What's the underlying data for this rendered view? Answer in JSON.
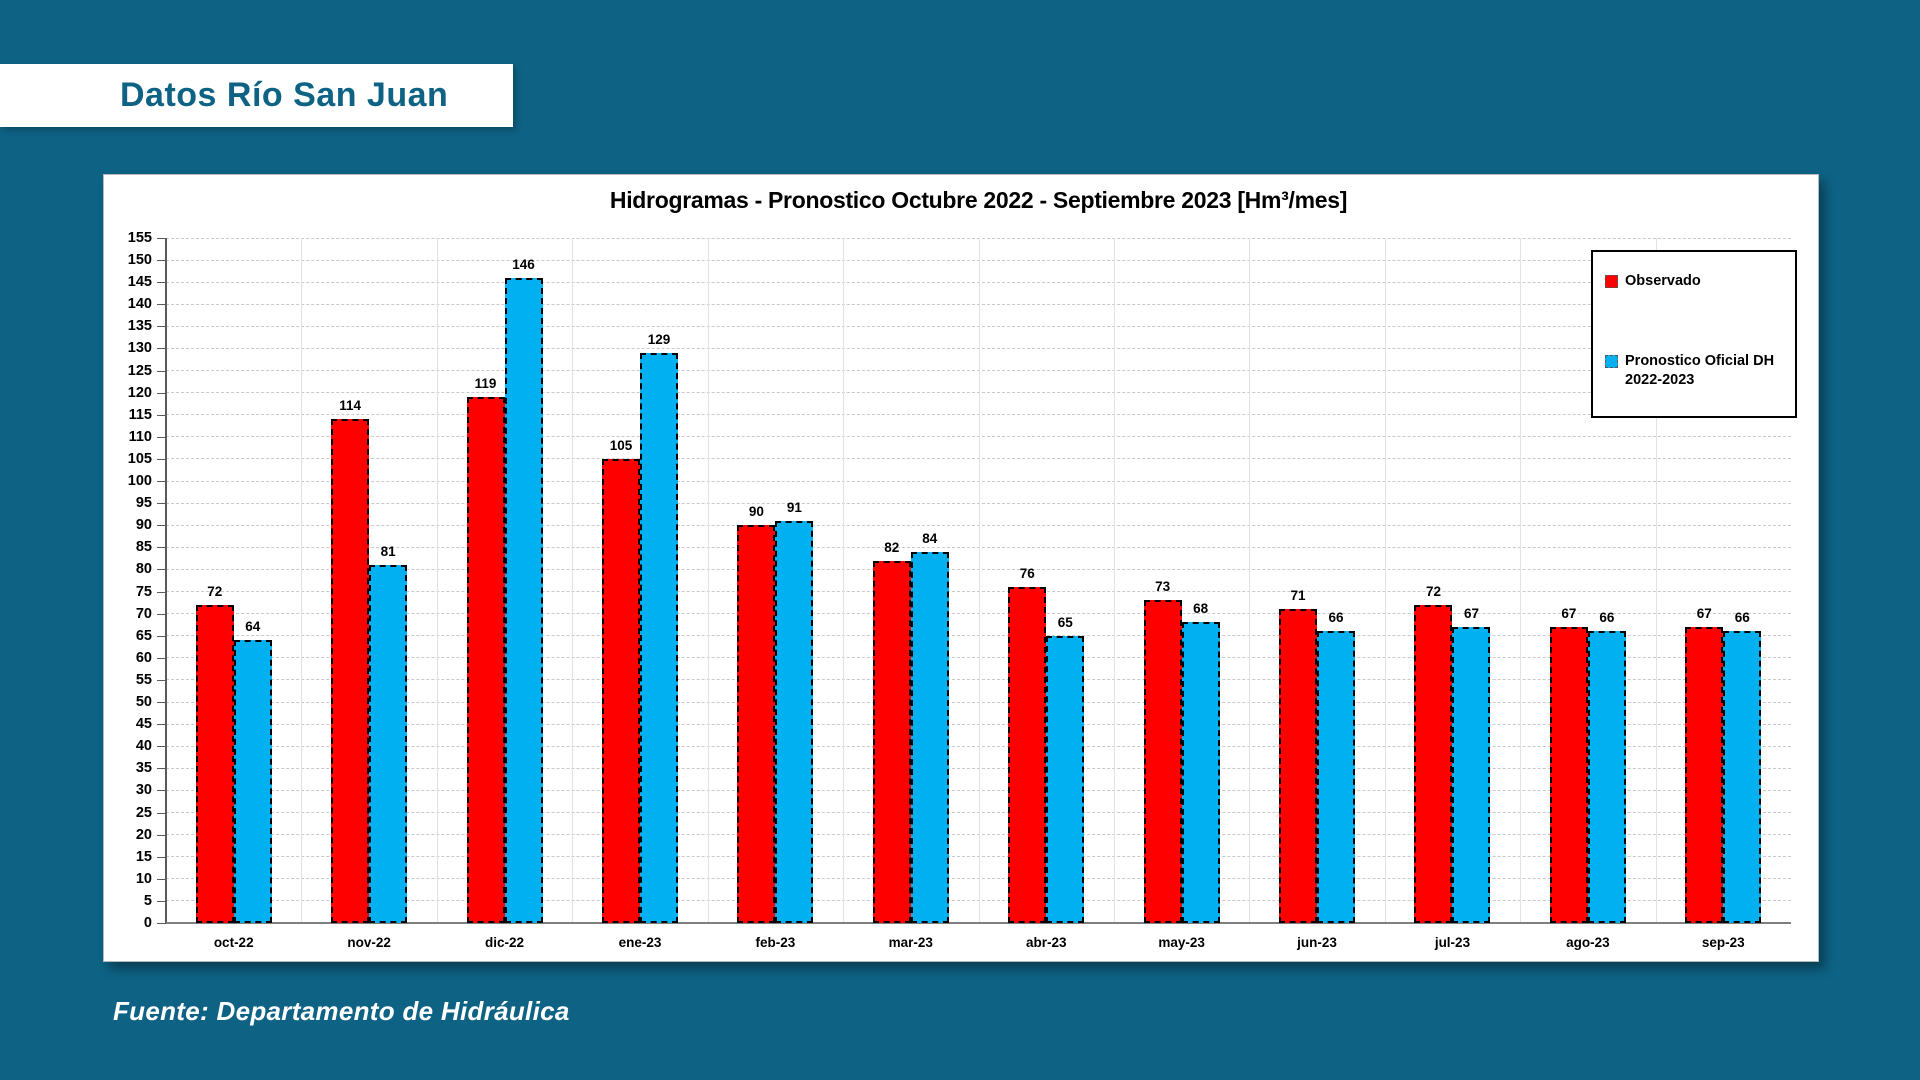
{
  "page": {
    "background_color": "#0e6284",
    "header_title": "Datos Río San Juan",
    "footer_source": "Fuente: Departamento de Hidráulica"
  },
  "chart_data": {
    "type": "bar",
    "title": "Hidrogramas - Pronostico Octubre 2022 - Septiembre 2023 [Hm³/mes]",
    "categories": [
      "oct-22",
      "nov-22",
      "dic-22",
      "ene-23",
      "feb-23",
      "mar-23",
      "abr-23",
      "may-23",
      "jun-23",
      "jul-23",
      "ago-23",
      "sep-23"
    ],
    "series": [
      {
        "name": "Observado",
        "color": "#ff0000",
        "values": [
          72,
          114,
          119,
          105,
          90,
          82,
          76,
          73,
          71,
          72,
          67,
          67
        ]
      },
      {
        "name": "Pronostico Oficial DH 2022-2023",
        "color": "#00b0f0",
        "values": [
          64,
          81,
          146,
          129,
          91,
          84,
          65,
          68,
          66,
          67,
          66,
          66
        ]
      }
    ],
    "ylim": [
      0,
      155
    ],
    "ytick_step": 5,
    "xlabel": "",
    "ylabel": "",
    "grid": "horizontal-dashed",
    "legend_position": "top-right",
    "legend": {
      "items": [
        {
          "label": "Observado",
          "color": "#ff0000"
        },
        {
          "label": "Pronostico Oficial DH\n2022-2023",
          "color": "#00b0f0"
        }
      ]
    }
  }
}
